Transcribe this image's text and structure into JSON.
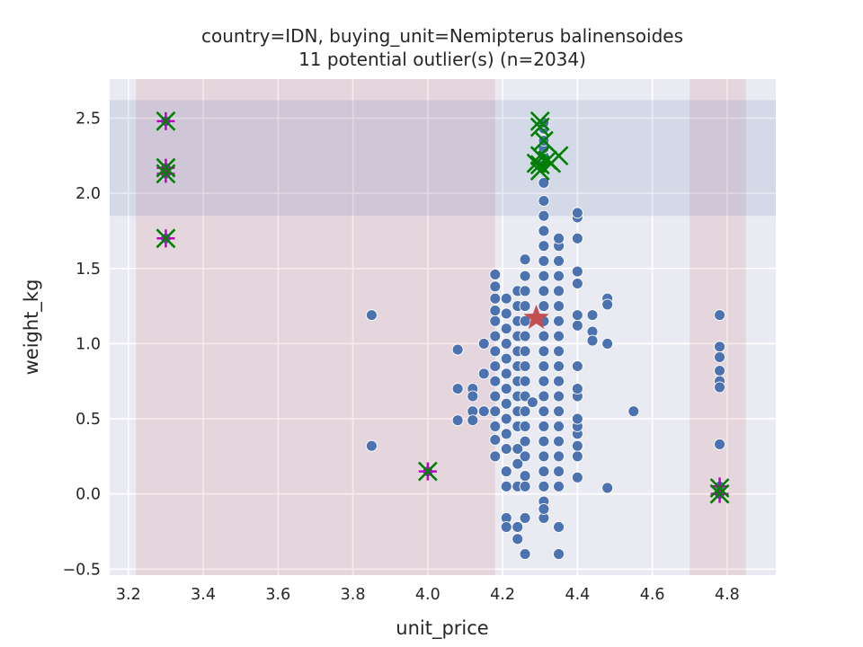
{
  "chart_data": {
    "type": "scatter",
    "title": "country=IDN, buying_unit=Nemipterus balinensoides",
    "subtitle": "11 potential outlier(s) (n=2034)",
    "xlabel": "unit_price",
    "ylabel": "weight_kg",
    "xlim": [
      3.15,
      4.93
    ],
    "ylim": [
      -0.54,
      2.76
    ],
    "xticks": [
      "3.2",
      "3.4",
      "3.6",
      "3.8",
      "4.0",
      "4.2",
      "4.4",
      "4.6",
      "4.8"
    ],
    "yticks": [
      "−0.5",
      "0.0",
      "0.5",
      "1.0",
      "1.5",
      "2.0",
      "2.5"
    ],
    "grid": true,
    "colors": {
      "background": "#eaeaf2",
      "grid": "#ffffff",
      "points": "#4c72b0",
      "x_band": "#c44e52",
      "y_band": "#4c72b0",
      "median_star": "#c44e52",
      "plus_marker": "#c000c0",
      "x_marker": "#008000"
    },
    "x_outlier_bands": [
      [
        3.22,
        4.18
      ],
      [
        4.7,
        4.85
      ]
    ],
    "y_outlier_band": [
      1.85,
      2.62
    ],
    "median": {
      "x": 4.29,
      "y": 1.17
    },
    "points": [
      {
        "x": 3.3,
        "y": 2.48
      },
      {
        "x": 3.3,
        "y": 2.17
      },
      {
        "x": 3.3,
        "y": 2.13
      },
      {
        "x": 3.3,
        "y": 1.7
      },
      {
        "x": 3.85,
        "y": 1.19
      },
      {
        "x": 3.85,
        "y": 0.32
      },
      {
        "x": 4.0,
        "y": 0.15
      },
      {
        "x": 4.08,
        "y": 0.96
      },
      {
        "x": 4.08,
        "y": 0.7
      },
      {
        "x": 4.08,
        "y": 0.49
      },
      {
        "x": 4.12,
        "y": 0.7
      },
      {
        "x": 4.12,
        "y": 0.65
      },
      {
        "x": 4.12,
        "y": 0.55
      },
      {
        "x": 4.12,
        "y": 0.49
      },
      {
        "x": 4.15,
        "y": 0.55
      },
      {
        "x": 4.15,
        "y": 0.8
      },
      {
        "x": 4.15,
        "y": 1.0
      },
      {
        "x": 4.18,
        "y": 0.25
      },
      {
        "x": 4.18,
        "y": 0.36
      },
      {
        "x": 4.18,
        "y": 0.45
      },
      {
        "x": 4.18,
        "y": 0.55
      },
      {
        "x": 4.18,
        "y": 0.65
      },
      {
        "x": 4.18,
        "y": 0.75
      },
      {
        "x": 4.18,
        "y": 0.85
      },
      {
        "x": 4.18,
        "y": 0.95
      },
      {
        "x": 4.18,
        "y": 1.05
      },
      {
        "x": 4.18,
        "y": 1.15
      },
      {
        "x": 4.18,
        "y": 1.22
      },
      {
        "x": 4.18,
        "y": 1.3
      },
      {
        "x": 4.18,
        "y": 1.38
      },
      {
        "x": 4.18,
        "y": 1.46
      },
      {
        "x": 4.21,
        "y": -0.16
      },
      {
        "x": 4.21,
        "y": -0.22
      },
      {
        "x": 4.21,
        "y": 0.05
      },
      {
        "x": 4.21,
        "y": 0.15
      },
      {
        "x": 4.21,
        "y": 0.3
      },
      {
        "x": 4.21,
        "y": 0.4
      },
      {
        "x": 4.21,
        "y": 0.5
      },
      {
        "x": 4.21,
        "y": 0.6
      },
      {
        "x": 4.21,
        "y": 0.7
      },
      {
        "x": 4.21,
        "y": 0.8
      },
      {
        "x": 4.21,
        "y": 0.9
      },
      {
        "x": 4.21,
        "y": 1.0
      },
      {
        "x": 4.21,
        "y": 1.1
      },
      {
        "x": 4.21,
        "y": 1.2
      },
      {
        "x": 4.21,
        "y": 1.3
      },
      {
        "x": 4.24,
        "y": -0.22
      },
      {
        "x": 4.24,
        "y": -0.3
      },
      {
        "x": 4.24,
        "y": 0.05
      },
      {
        "x": 4.24,
        "y": 0.2
      },
      {
        "x": 4.24,
        "y": 0.3
      },
      {
        "x": 4.24,
        "y": 0.45
      },
      {
        "x": 4.24,
        "y": 0.55
      },
      {
        "x": 4.24,
        "y": 0.65
      },
      {
        "x": 4.24,
        "y": 0.75
      },
      {
        "x": 4.24,
        "y": 0.85
      },
      {
        "x": 4.24,
        "y": 0.95
      },
      {
        "x": 4.24,
        "y": 1.05
      },
      {
        "x": 4.24,
        "y": 1.15
      },
      {
        "x": 4.24,
        "y": 1.25
      },
      {
        "x": 4.24,
        "y": 1.35
      },
      {
        "x": 4.26,
        "y": -0.4
      },
      {
        "x": 4.26,
        "y": -0.16
      },
      {
        "x": 4.26,
        "y": 0.05
      },
      {
        "x": 4.26,
        "y": 0.12
      },
      {
        "x": 4.26,
        "y": 0.25
      },
      {
        "x": 4.26,
        "y": 0.35
      },
      {
        "x": 4.26,
        "y": 0.45
      },
      {
        "x": 4.26,
        "y": 0.55
      },
      {
        "x": 4.26,
        "y": 0.65
      },
      {
        "x": 4.26,
        "y": 0.75
      },
      {
        "x": 4.26,
        "y": 0.85
      },
      {
        "x": 4.26,
        "y": 0.95
      },
      {
        "x": 4.26,
        "y": 1.05
      },
      {
        "x": 4.26,
        "y": 1.15
      },
      {
        "x": 4.26,
        "y": 1.25
      },
      {
        "x": 4.26,
        "y": 1.35
      },
      {
        "x": 4.26,
        "y": 1.45
      },
      {
        "x": 4.26,
        "y": 1.56
      },
      {
        "x": 4.28,
        "y": 0.61
      },
      {
        "x": 4.31,
        "y": -0.16
      },
      {
        "x": 4.31,
        "y": -0.05
      },
      {
        "x": 4.31,
        "y": -0.1
      },
      {
        "x": 4.31,
        "y": 0.05
      },
      {
        "x": 4.31,
        "y": 0.15
      },
      {
        "x": 4.31,
        "y": 0.25
      },
      {
        "x": 4.31,
        "y": 0.35
      },
      {
        "x": 4.31,
        "y": 0.45
      },
      {
        "x": 4.31,
        "y": 0.55
      },
      {
        "x": 4.31,
        "y": 0.65
      },
      {
        "x": 4.31,
        "y": 0.75
      },
      {
        "x": 4.31,
        "y": 0.85
      },
      {
        "x": 4.31,
        "y": 0.95
      },
      {
        "x": 4.31,
        "y": 1.05
      },
      {
        "x": 4.31,
        "y": 1.15
      },
      {
        "x": 4.31,
        "y": 1.25
      },
      {
        "x": 4.31,
        "y": 1.35
      },
      {
        "x": 4.31,
        "y": 1.45
      },
      {
        "x": 4.31,
        "y": 1.55
      },
      {
        "x": 4.31,
        "y": 1.65
      },
      {
        "x": 4.31,
        "y": 1.75
      },
      {
        "x": 4.31,
        "y": 1.85
      },
      {
        "x": 4.31,
        "y": 1.95
      },
      {
        "x": 4.31,
        "y": 2.07
      },
      {
        "x": 4.31,
        "y": 2.2
      },
      {
        "x": 4.31,
        "y": 2.25
      },
      {
        "x": 4.31,
        "y": 2.3
      },
      {
        "x": 4.31,
        "y": 2.35
      },
      {
        "x": 4.31,
        "y": 2.43
      },
      {
        "x": 4.31,
        "y": 2.47
      },
      {
        "x": 4.35,
        "y": -0.4
      },
      {
        "x": 4.35,
        "y": -0.22
      },
      {
        "x": 4.35,
        "y": 0.05
      },
      {
        "x": 4.35,
        "y": 0.15
      },
      {
        "x": 4.35,
        "y": 0.25
      },
      {
        "x": 4.35,
        "y": 0.35
      },
      {
        "x": 4.35,
        "y": 0.45
      },
      {
        "x": 4.35,
        "y": 0.55
      },
      {
        "x": 4.35,
        "y": 0.65
      },
      {
        "x": 4.35,
        "y": 0.75
      },
      {
        "x": 4.35,
        "y": 0.85
      },
      {
        "x": 4.35,
        "y": 0.95
      },
      {
        "x": 4.35,
        "y": 1.05
      },
      {
        "x": 4.35,
        "y": 1.15
      },
      {
        "x": 4.35,
        "y": 1.25
      },
      {
        "x": 4.35,
        "y": 1.35
      },
      {
        "x": 4.35,
        "y": 1.45
      },
      {
        "x": 4.35,
        "y": 1.55
      },
      {
        "x": 4.35,
        "y": 1.65
      },
      {
        "x": 4.35,
        "y": 1.7
      },
      {
        "x": 4.4,
        "y": 0.11
      },
      {
        "x": 4.4,
        "y": 0.25
      },
      {
        "x": 4.4,
        "y": 0.32
      },
      {
        "x": 4.4,
        "y": 0.4
      },
      {
        "x": 4.4,
        "y": 0.45
      },
      {
        "x": 4.4,
        "y": 0.5
      },
      {
        "x": 4.4,
        "y": 0.65
      },
      {
        "x": 4.4,
        "y": 0.7
      },
      {
        "x": 4.4,
        "y": 0.85
      },
      {
        "x": 4.4,
        "y": 1.12
      },
      {
        "x": 4.4,
        "y": 1.19
      },
      {
        "x": 4.4,
        "y": 1.4
      },
      {
        "x": 4.4,
        "y": 1.48
      },
      {
        "x": 4.4,
        "y": 1.7
      },
      {
        "x": 4.4,
        "y": 1.84
      },
      {
        "x": 4.4,
        "y": 1.87
      },
      {
        "x": 4.44,
        "y": 1.19
      },
      {
        "x": 4.44,
        "y": 1.08
      },
      {
        "x": 4.44,
        "y": 1.02
      },
      {
        "x": 4.48,
        "y": 1.3
      },
      {
        "x": 4.48,
        "y": 1.26
      },
      {
        "x": 4.48,
        "y": 1.0
      },
      {
        "x": 4.48,
        "y": 0.04
      },
      {
        "x": 4.55,
        "y": 0.55
      },
      {
        "x": 4.78,
        "y": 1.19
      },
      {
        "x": 4.78,
        "y": 0.98
      },
      {
        "x": 4.78,
        "y": 0.91
      },
      {
        "x": 4.78,
        "y": 0.82
      },
      {
        "x": 4.78,
        "y": 0.75
      },
      {
        "x": 4.78,
        "y": 0.71
      },
      {
        "x": 4.78,
        "y": 0.33
      },
      {
        "x": 4.78,
        "y": 0.05
      },
      {
        "x": 4.78,
        "y": 0.02
      },
      {
        "x": 4.78,
        "y": 0.0
      }
    ],
    "plus_outliers": [
      {
        "x": 3.3,
        "y": 2.48
      },
      {
        "x": 3.3,
        "y": 2.17
      },
      {
        "x": 3.3,
        "y": 2.13
      },
      {
        "x": 3.3,
        "y": 1.7
      },
      {
        "x": 4.0,
        "y": 0.15
      },
      {
        "x": 4.78,
        "y": 0.05
      },
      {
        "x": 4.78,
        "y": 0.0
      }
    ],
    "x_outliers": [
      {
        "x": 3.3,
        "y": 2.48
      },
      {
        "x": 3.3,
        "y": 2.17
      },
      {
        "x": 3.3,
        "y": 2.13
      },
      {
        "x": 3.3,
        "y": 1.7
      },
      {
        "x": 4.0,
        "y": 0.15
      },
      {
        "x": 4.78,
        "y": 0.04
      },
      {
        "x": 4.78,
        "y": 0.0
      },
      {
        "x": 4.3,
        "y": 2.48
      },
      {
        "x": 4.3,
        "y": 2.44
      },
      {
        "x": 4.31,
        "y": 2.35
      },
      {
        "x": 4.3,
        "y": 2.25
      },
      {
        "x": 4.32,
        "y": 2.22
      },
      {
        "x": 4.3,
        "y": 2.19
      },
      {
        "x": 4.3,
        "y": 2.15
      },
      {
        "x": 4.33,
        "y": 2.2
      },
      {
        "x": 4.35,
        "y": 2.25
      },
      {
        "x": 4.29,
        "y": 2.2
      }
    ]
  }
}
